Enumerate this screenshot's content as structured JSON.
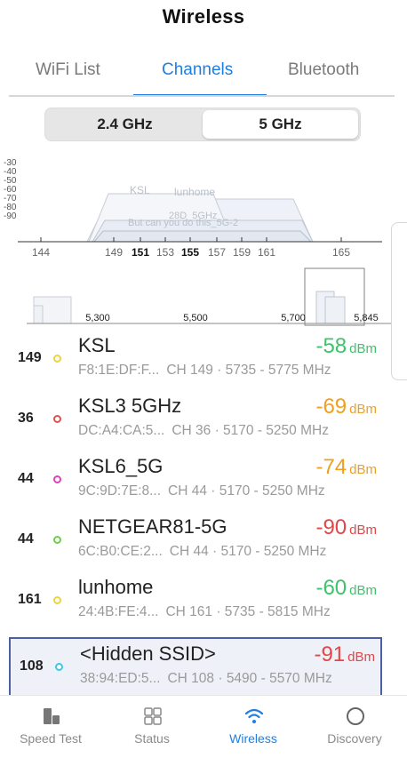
{
  "header": {
    "title": "Wireless"
  },
  "tabs": [
    {
      "label": "WiFi List",
      "active": false
    },
    {
      "label": "Channels",
      "active": true
    },
    {
      "label": "Bluetooth",
      "active": false
    }
  ],
  "band_selector": {
    "options": [
      "2.4 GHz",
      "5 GHz"
    ],
    "selected": "5 GHz"
  },
  "chart_data": {
    "type": "area",
    "y_ticks": [
      "-30",
      "-40",
      "-50",
      "-60",
      "-70",
      "-80",
      "-90"
    ],
    "x_ticks": [
      {
        "label": "144",
        "bold": false
      },
      {
        "label": "149",
        "bold": false
      },
      {
        "label": "151",
        "bold": true
      },
      {
        "label": "153",
        "bold": false
      },
      {
        "label": "155",
        "bold": true
      },
      {
        "label": "157",
        "bold": false
      },
      {
        "label": "159",
        "bold": false
      },
      {
        "label": "161",
        "bold": false
      },
      {
        "label": "165",
        "bold": false
      }
    ],
    "network_labels": [
      "KSL",
      "lunhome",
      "28D_5GHz",
      "But can you do this_5G-2"
    ],
    "overview_ticks": [
      "5,300",
      "5,500",
      "5,700",
      "5,845"
    ]
  },
  "networks": [
    {
      "channel": "149",
      "ssid": "KSL",
      "mac": "F8:1E:DF:F...",
      "ch_info": "CH 149 · 5735 - 5775 MHz",
      "dbm": "-58",
      "unit": "dBm",
      "signal_color": "#3cc46a",
      "dot_color": "#f0d23a",
      "selected": false
    },
    {
      "channel": "36",
      "ssid": "KSL3 5GHz",
      "mac": "DC:A4:CA:5...",
      "ch_info": "CH 36 · 5170 - 5250 MHz",
      "dbm": "-69",
      "unit": "dBm",
      "signal_color": "#f0a020",
      "dot_color": "#e05050",
      "selected": false
    },
    {
      "channel": "44",
      "ssid": "KSL6_5G",
      "mac": "9C:9D:7E:8...",
      "ch_info": "CH 44 · 5170 - 5250 MHz",
      "dbm": "-74",
      "unit": "dBm",
      "signal_color": "#f0a020",
      "dot_color": "#e040c0",
      "selected": false
    },
    {
      "channel": "44",
      "ssid": "NETGEAR81-5G",
      "mac": "6C:B0:CE:2...",
      "ch_info": "CH 44 · 5170 - 5250 MHz",
      "dbm": "-90",
      "unit": "dBm",
      "signal_color": "#e54545",
      "dot_color": "#6ad04a",
      "selected": false
    },
    {
      "channel": "161",
      "ssid": "lunhome",
      "mac": "24:4B:FE:4...",
      "ch_info": "CH 161 · 5735 - 5815 MHz",
      "dbm": "-60",
      "unit": "dBm",
      "signal_color": "#3cc46a",
      "dot_color": "#f0d23a",
      "selected": false
    },
    {
      "channel": "108",
      "ssid": "<Hidden SSID>",
      "mac": "38:94:ED:5...",
      "ch_info": "CH 108 · 5490 - 5570 MHz",
      "dbm": "-91",
      "unit": "dBm",
      "signal_color": "#e54545",
      "dot_color": "#3cc8e8",
      "selected": true
    }
  ],
  "bottom_nav": [
    {
      "label": "Speed Test",
      "icon": "speed-test-icon",
      "active": false
    },
    {
      "label": "Status",
      "icon": "status-grid-icon",
      "active": false
    },
    {
      "label": "Wireless",
      "icon": "wifi-icon",
      "active": true
    },
    {
      "label": "Discovery",
      "icon": "discovery-circle-icon",
      "active": false
    }
  ],
  "colors": {
    "accent": "#1f7fe0",
    "selected_border": "#4a5fa8"
  }
}
